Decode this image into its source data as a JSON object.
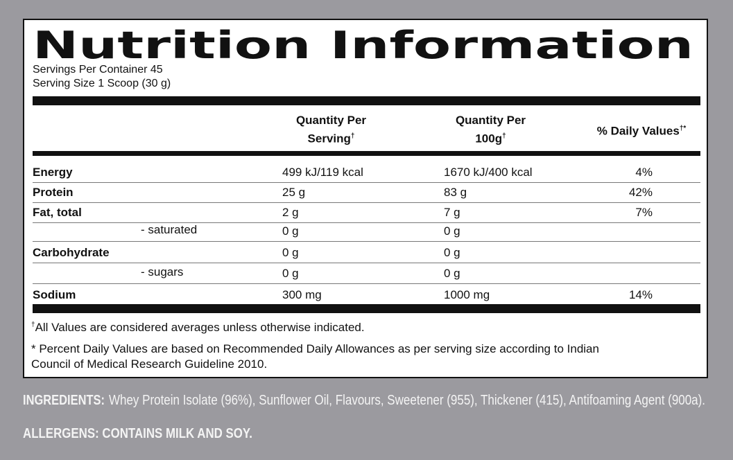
{
  "title": "Nutrition Information",
  "servings": [
    "Servings Per Container 45",
    "Serving Size 1 Scoop (30 g)"
  ],
  "table": {
    "headers": [
      {
        "line1": "Quantity Per",
        "line2": "Serving",
        "mark": "†"
      },
      {
        "line1": "Quantity Per",
        "line2": "100g",
        "mark": "†"
      },
      {
        "line1": "% Daily Values",
        "mark": "†*"
      }
    ],
    "rows": [
      {
        "nutrient": "Energy",
        "per_serving": "499 kJ/119 kcal",
        "per_100g": "1670 kJ/400 kcal",
        "daily_value": "4%"
      },
      {
        "nutrient": "Protein",
        "per_serving": "25 g",
        "per_100g": "83 g",
        "daily_value": "42%"
      },
      {
        "nutrient": "Fat, total",
        "per_serving": "2 g",
        "per_100g": "7 g",
        "daily_value": "7%"
      },
      {
        "sub": "- saturated",
        "per_serving": "0 g",
        "per_100g": "0 g"
      },
      {
        "nutrient": "Carbohydrate",
        "per_serving": "0 g",
        "per_100g": "0 g"
      },
      {
        "sub": "- sugars",
        "per_serving": "0 g",
        "per_100g": "0 g"
      },
      {
        "nutrient": "Sodium",
        "per_serving": "300 mg",
        "per_100g": "1000 mg",
        "daily_value": "14%"
      }
    ]
  },
  "footnotes": [
    {
      "mark": "†",
      "text": "All Values are considered averages unless otherwise indicated."
    },
    {
      "lines": [
        "* Percent Daily Values are based on Recommended Daily Allowances as per serving size according to Indian",
        "Council of Medical Research Guideline 2010."
      ]
    }
  ],
  "ingredients": {
    "label": "INGREDIENTS:",
    "text": "Whey Protein Isolate (96%), Sunflower Oil, Flavours, Sweetener (955), Thickener (415), Antifoaming Agent (900a)."
  },
  "allergens": "ALLERGENS: CONTAINS MILK AND SOY."
}
